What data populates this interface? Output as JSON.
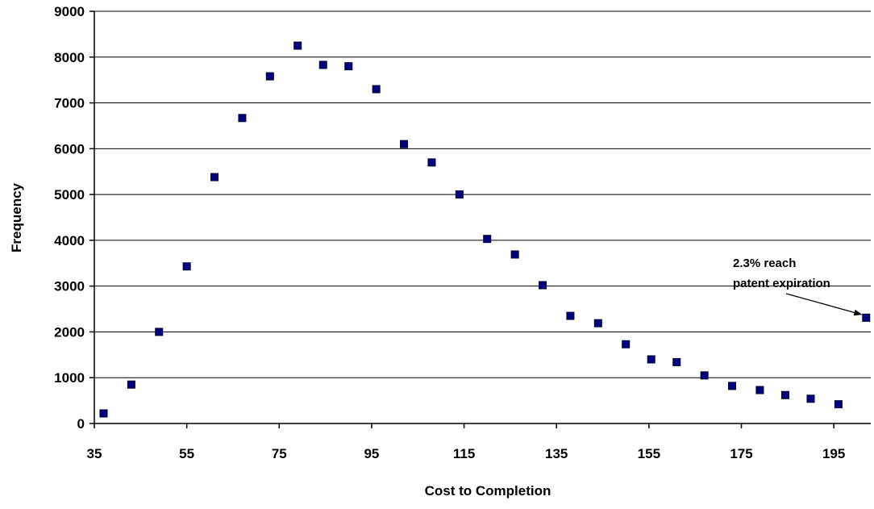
{
  "chart_data": {
    "type": "scatter",
    "title": "",
    "xlabel": "Cost to Completion",
    "ylabel": "Frequency",
    "xlim": [
      35,
      203
    ],
    "ylim": [
      0,
      9000
    ],
    "xticks": [
      35,
      55,
      75,
      95,
      115,
      135,
      155,
      175,
      195
    ],
    "yticks": [
      0,
      1000,
      2000,
      3000,
      4000,
      5000,
      6000,
      7000,
      8000,
      9000
    ],
    "grid": "horizontal",
    "legend": "none",
    "marker_color": "#000080",
    "series": [
      {
        "x": [
          37,
          43,
          49,
          55,
          61,
          67,
          73,
          79,
          84.5,
          90,
          96,
          102,
          108,
          114,
          120,
          126,
          132,
          138,
          144,
          150,
          155.5,
          161,
          167,
          173,
          179,
          184.5,
          190,
          196,
          202
        ],
        "values": [
          220,
          850,
          2000,
          3430,
          5380,
          6670,
          7580,
          8250,
          7830,
          7800,
          7300,
          6100,
          5700,
          5000,
          4030,
          3690,
          3020,
          2350,
          2190,
          1730,
          1400,
          1340,
          1050,
          820,
          730,
          620,
          540,
          420,
          2310
        ]
      }
    ],
    "annotations": [
      {
        "lines": [
          "2.3% reach",
          "patent expiration"
        ],
        "points_to": {
          "x": 202,
          "y": 2310
        }
      }
    ]
  }
}
